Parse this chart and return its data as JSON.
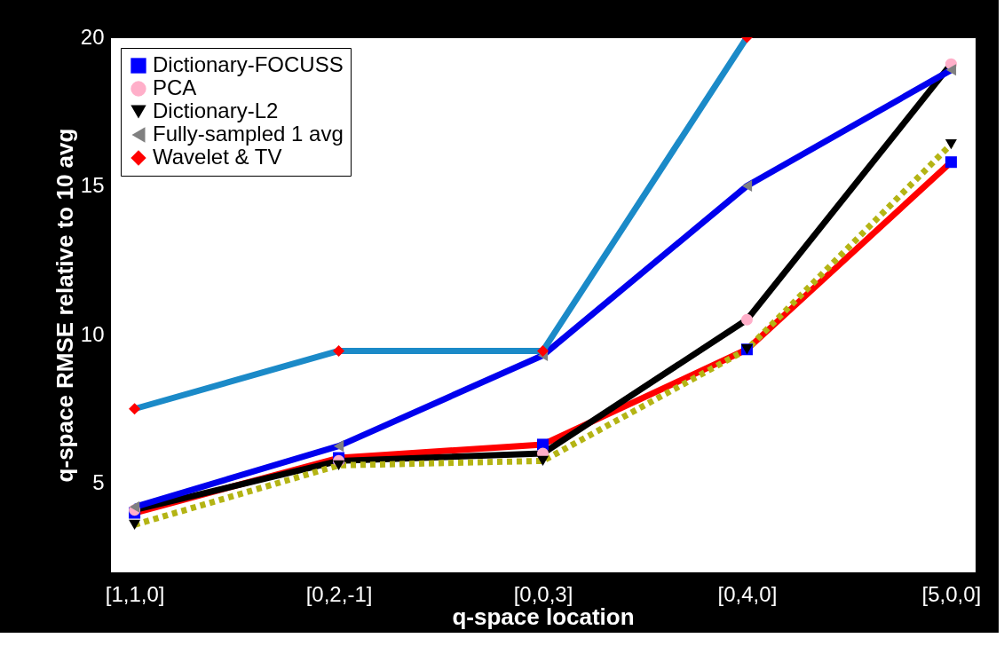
{
  "chart_data": {
    "type": "line",
    "xlabel": "q-space location",
    "ylabel": "q-space RMSE relative to 10 avg",
    "categories": [
      "[1,1,0]",
      "[0,2,-1]",
      "[0,0,3]",
      "[0,4,0]",
      "[5,0,0]"
    ],
    "ylim": [
      2,
      20
    ],
    "yticks": [
      5,
      10,
      15,
      20
    ],
    "grid": false,
    "legend": "top left",
    "series": [
      {
        "name": "Dictionary-FOCUSS",
        "color": "#ff0000",
        "marker": "square",
        "line_style": "solid",
        "colors": [
          "#0000ff",
          "#0000ff",
          "#0000ff",
          "#0000ff",
          "#0000ff"
        ],
        "values": [
          4.0,
          5.85,
          6.3,
          9.5,
          15.8
        ]
      },
      {
        "name": "PCA",
        "color": "#000000",
        "marker": "circle",
        "line_style": "solid",
        "colors": [
          "#ffafc9",
          "#ffafc9",
          "#ffafc9",
          "#ffafc9",
          "#ffafc9"
        ],
        "values": [
          4.1,
          5.75,
          6.0,
          10.5,
          19.1
        ]
      },
      {
        "name": "Dictionary-L2",
        "color": "#b4b414",
        "marker": "triangle-down",
        "line_style": "dotted",
        "colors": [
          "#000000",
          "#000000",
          "#000000",
          "#000000",
          "#000000"
        ],
        "values": [
          3.6,
          5.6,
          5.75,
          9.5,
          16.4
        ]
      },
      {
        "name": "Fully-sampled 1 avg",
        "color": "#0000ee",
        "marker": "triangle-left",
        "line_style": "solid",
        "colors": [
          "#808080",
          "#808080",
          "#808080",
          "#808080",
          "#808080"
        ],
        "values": [
          4.2,
          6.25,
          9.3,
          15.0,
          18.9
        ]
      },
      {
        "name": "Wavelet & TV",
        "color": "#1b8ac8",
        "marker": "diamond",
        "line_style": "solid",
        "colors": [
          "#ff0000",
          "#ff0000",
          "#ff0000",
          "#ff0000",
          "#ff0000"
        ],
        "values": [
          7.5,
          9.45,
          9.45,
          20,
          null
        ]
      }
    ]
  }
}
